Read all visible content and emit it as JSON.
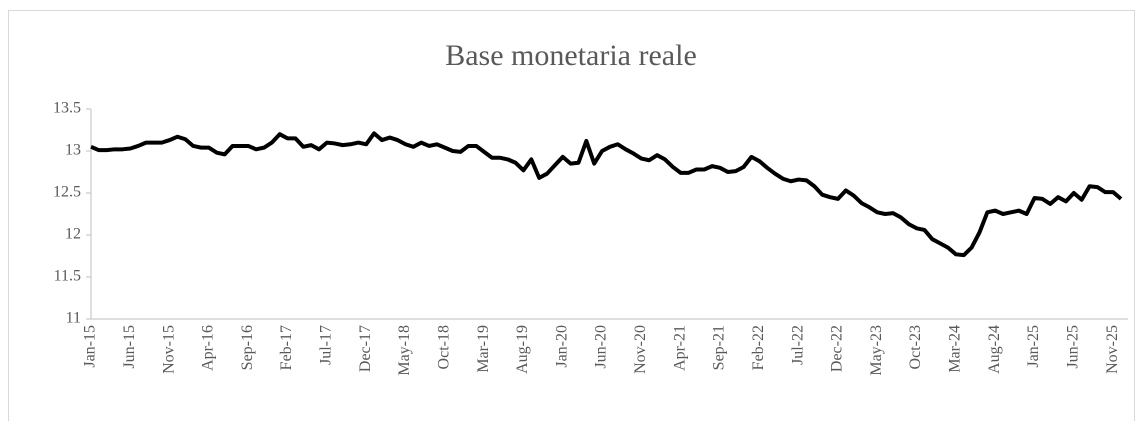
{
  "chart_data": {
    "type": "line",
    "title": "Base monetaria reale",
    "categories": [
      "Jan-15",
      null,
      null,
      null,
      null,
      "Jun-15",
      null,
      null,
      null,
      null,
      "Nov-15",
      null,
      null,
      null,
      null,
      "Apr-16",
      null,
      null,
      null,
      null,
      "Sep-16",
      null,
      null,
      null,
      null,
      "Feb-17",
      null,
      null,
      null,
      null,
      "Jul-17",
      null,
      null,
      null,
      null,
      "Dec-17",
      null,
      null,
      null,
      null,
      "May-18",
      null,
      null,
      null,
      null,
      "Oct-18",
      null,
      null,
      null,
      null,
      "Mar-19",
      null,
      null,
      null,
      null,
      "Aug-19",
      null,
      null,
      null,
      null,
      "Jan-20",
      null,
      null,
      null,
      null,
      "Jun-20",
      null,
      null,
      null,
      null,
      "Nov-20",
      null,
      null,
      null,
      null,
      "Apr-21",
      null,
      null,
      null,
      null,
      "Sep-21",
      null,
      null,
      null,
      null,
      "Feb-22",
      null,
      null,
      null,
      null,
      "Jul-22",
      null,
      null,
      null,
      null,
      "Dec-22",
      null,
      null,
      null,
      null,
      "May-23",
      null,
      null,
      null,
      null,
      "Oct-23",
      null,
      null,
      null,
      null,
      "Mar-24",
      null,
      null,
      null,
      null,
      "Aug-24",
      null,
      null,
      null,
      null,
      "Jan-25",
      null,
      null,
      null,
      null,
      "Jun-25",
      null,
      null,
      null,
      null,
      "Nov-25",
      null
    ],
    "series": [
      {
        "name": "Base monetaria reale",
        "color": "#000000",
        "values": [
          13.05,
          13.01,
          13.01,
          13.02,
          13.02,
          13.03,
          13.06,
          13.1,
          13.1,
          13.1,
          13.13,
          13.17,
          13.14,
          13.06,
          13.04,
          13.04,
          12.98,
          12.96,
          13.06,
          13.06,
          13.06,
          13.02,
          13.04,
          13.1,
          13.2,
          13.15,
          13.15,
          13.05,
          13.07,
          13.02,
          13.1,
          13.09,
          13.07,
          13.08,
          13.1,
          13.08,
          13.21,
          13.13,
          13.16,
          13.13,
          13.08,
          13.05,
          13.1,
          13.06,
          13.08,
          13.04,
          13.0,
          12.99,
          13.06,
          13.06,
          12.99,
          12.92,
          12.92,
          12.9,
          12.86,
          12.77,
          12.9,
          12.68,
          12.73,
          12.83,
          12.93,
          12.85,
          12.86,
          13.12,
          12.85,
          13.0,
          13.05,
          13.08,
          13.02,
          12.97,
          12.91,
          12.89,
          12.95,
          12.9,
          12.81,
          12.74,
          12.74,
          12.78,
          12.78,
          12.82,
          12.8,
          12.75,
          12.76,
          12.81,
          12.93,
          12.88,
          12.8,
          12.73,
          12.67,
          12.64,
          12.66,
          12.65,
          12.58,
          12.48,
          12.45,
          12.43,
          12.53,
          12.47,
          12.38,
          12.33,
          12.27,
          12.25,
          12.26,
          12.21,
          12.13,
          12.08,
          12.06,
          11.95,
          11.9,
          11.85,
          11.77,
          11.76,
          11.85,
          12.03,
          12.27,
          12.29,
          12.25,
          12.27,
          12.29,
          12.25,
          12.44,
          12.43,
          12.37,
          12.45,
          12.4,
          12.5,
          12.42,
          12.58,
          12.57,
          12.51,
          12.51,
          12.43
        ]
      }
    ],
    "ylim": [
      11,
      13.5
    ],
    "yticks": [
      11,
      11.5,
      12,
      12.5,
      13,
      13.5
    ],
    "grid": false
  }
}
